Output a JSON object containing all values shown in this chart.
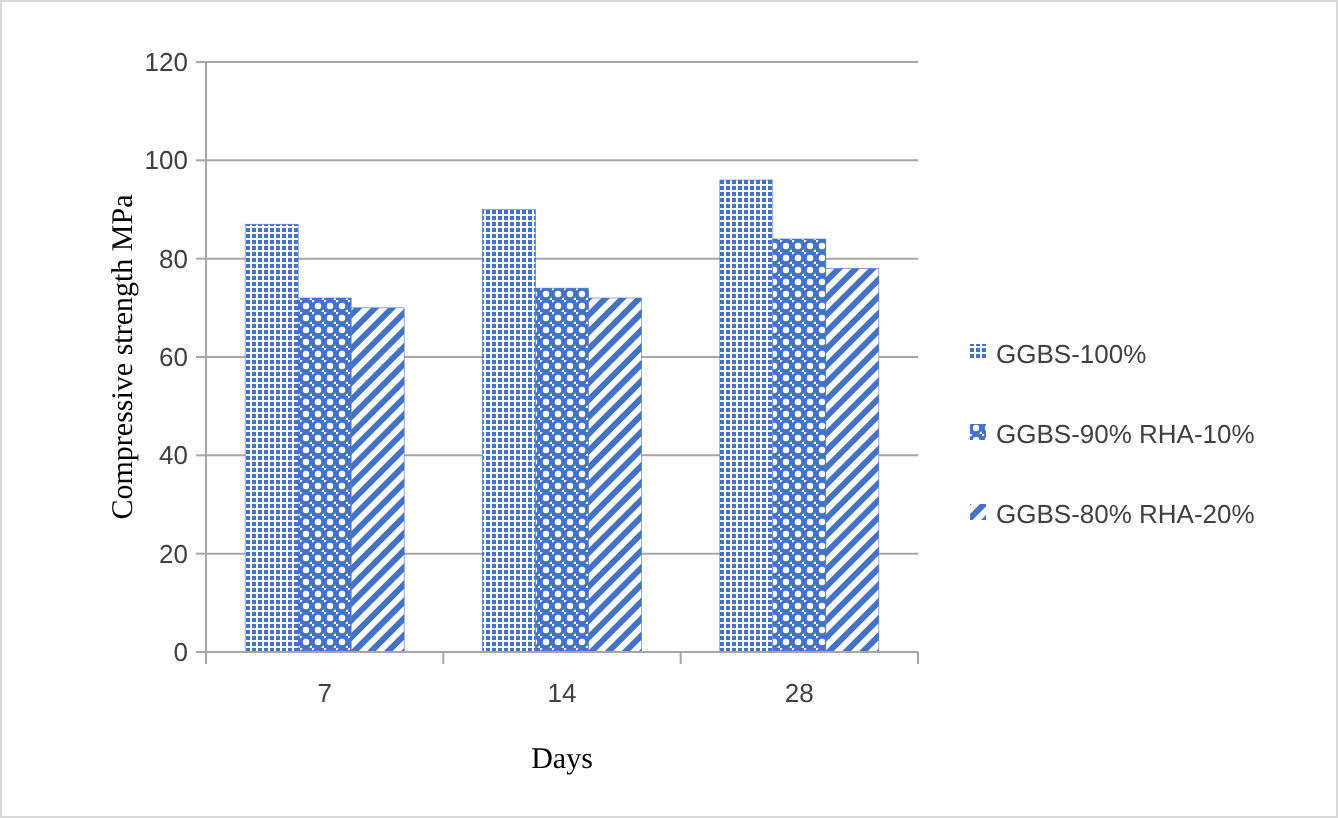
{
  "chart_data": {
    "type": "bar",
    "xlabel": "Days",
    "ylabel": "Compressive strength MPa",
    "categories": [
      "7",
      "14",
      "28"
    ],
    "series": [
      {
        "name": "GGBS-100%",
        "color": "#4472c4",
        "values": [
          87,
          90,
          96
        ]
      },
      {
        "name": "GGBS-90% RHA-10%",
        "color": "#4472c4",
        "values": [
          72,
          74,
          84
        ]
      },
      {
        "name": "GGBS-80% RHA-20%",
        "color": "#4472c4",
        "values": [
          70,
          72,
          78
        ]
      }
    ],
    "ylim": [
      0,
      120
    ],
    "yticks": [
      0,
      20,
      40,
      60,
      80,
      100,
      120
    ],
    "grid": "y",
    "legend": "right"
  }
}
